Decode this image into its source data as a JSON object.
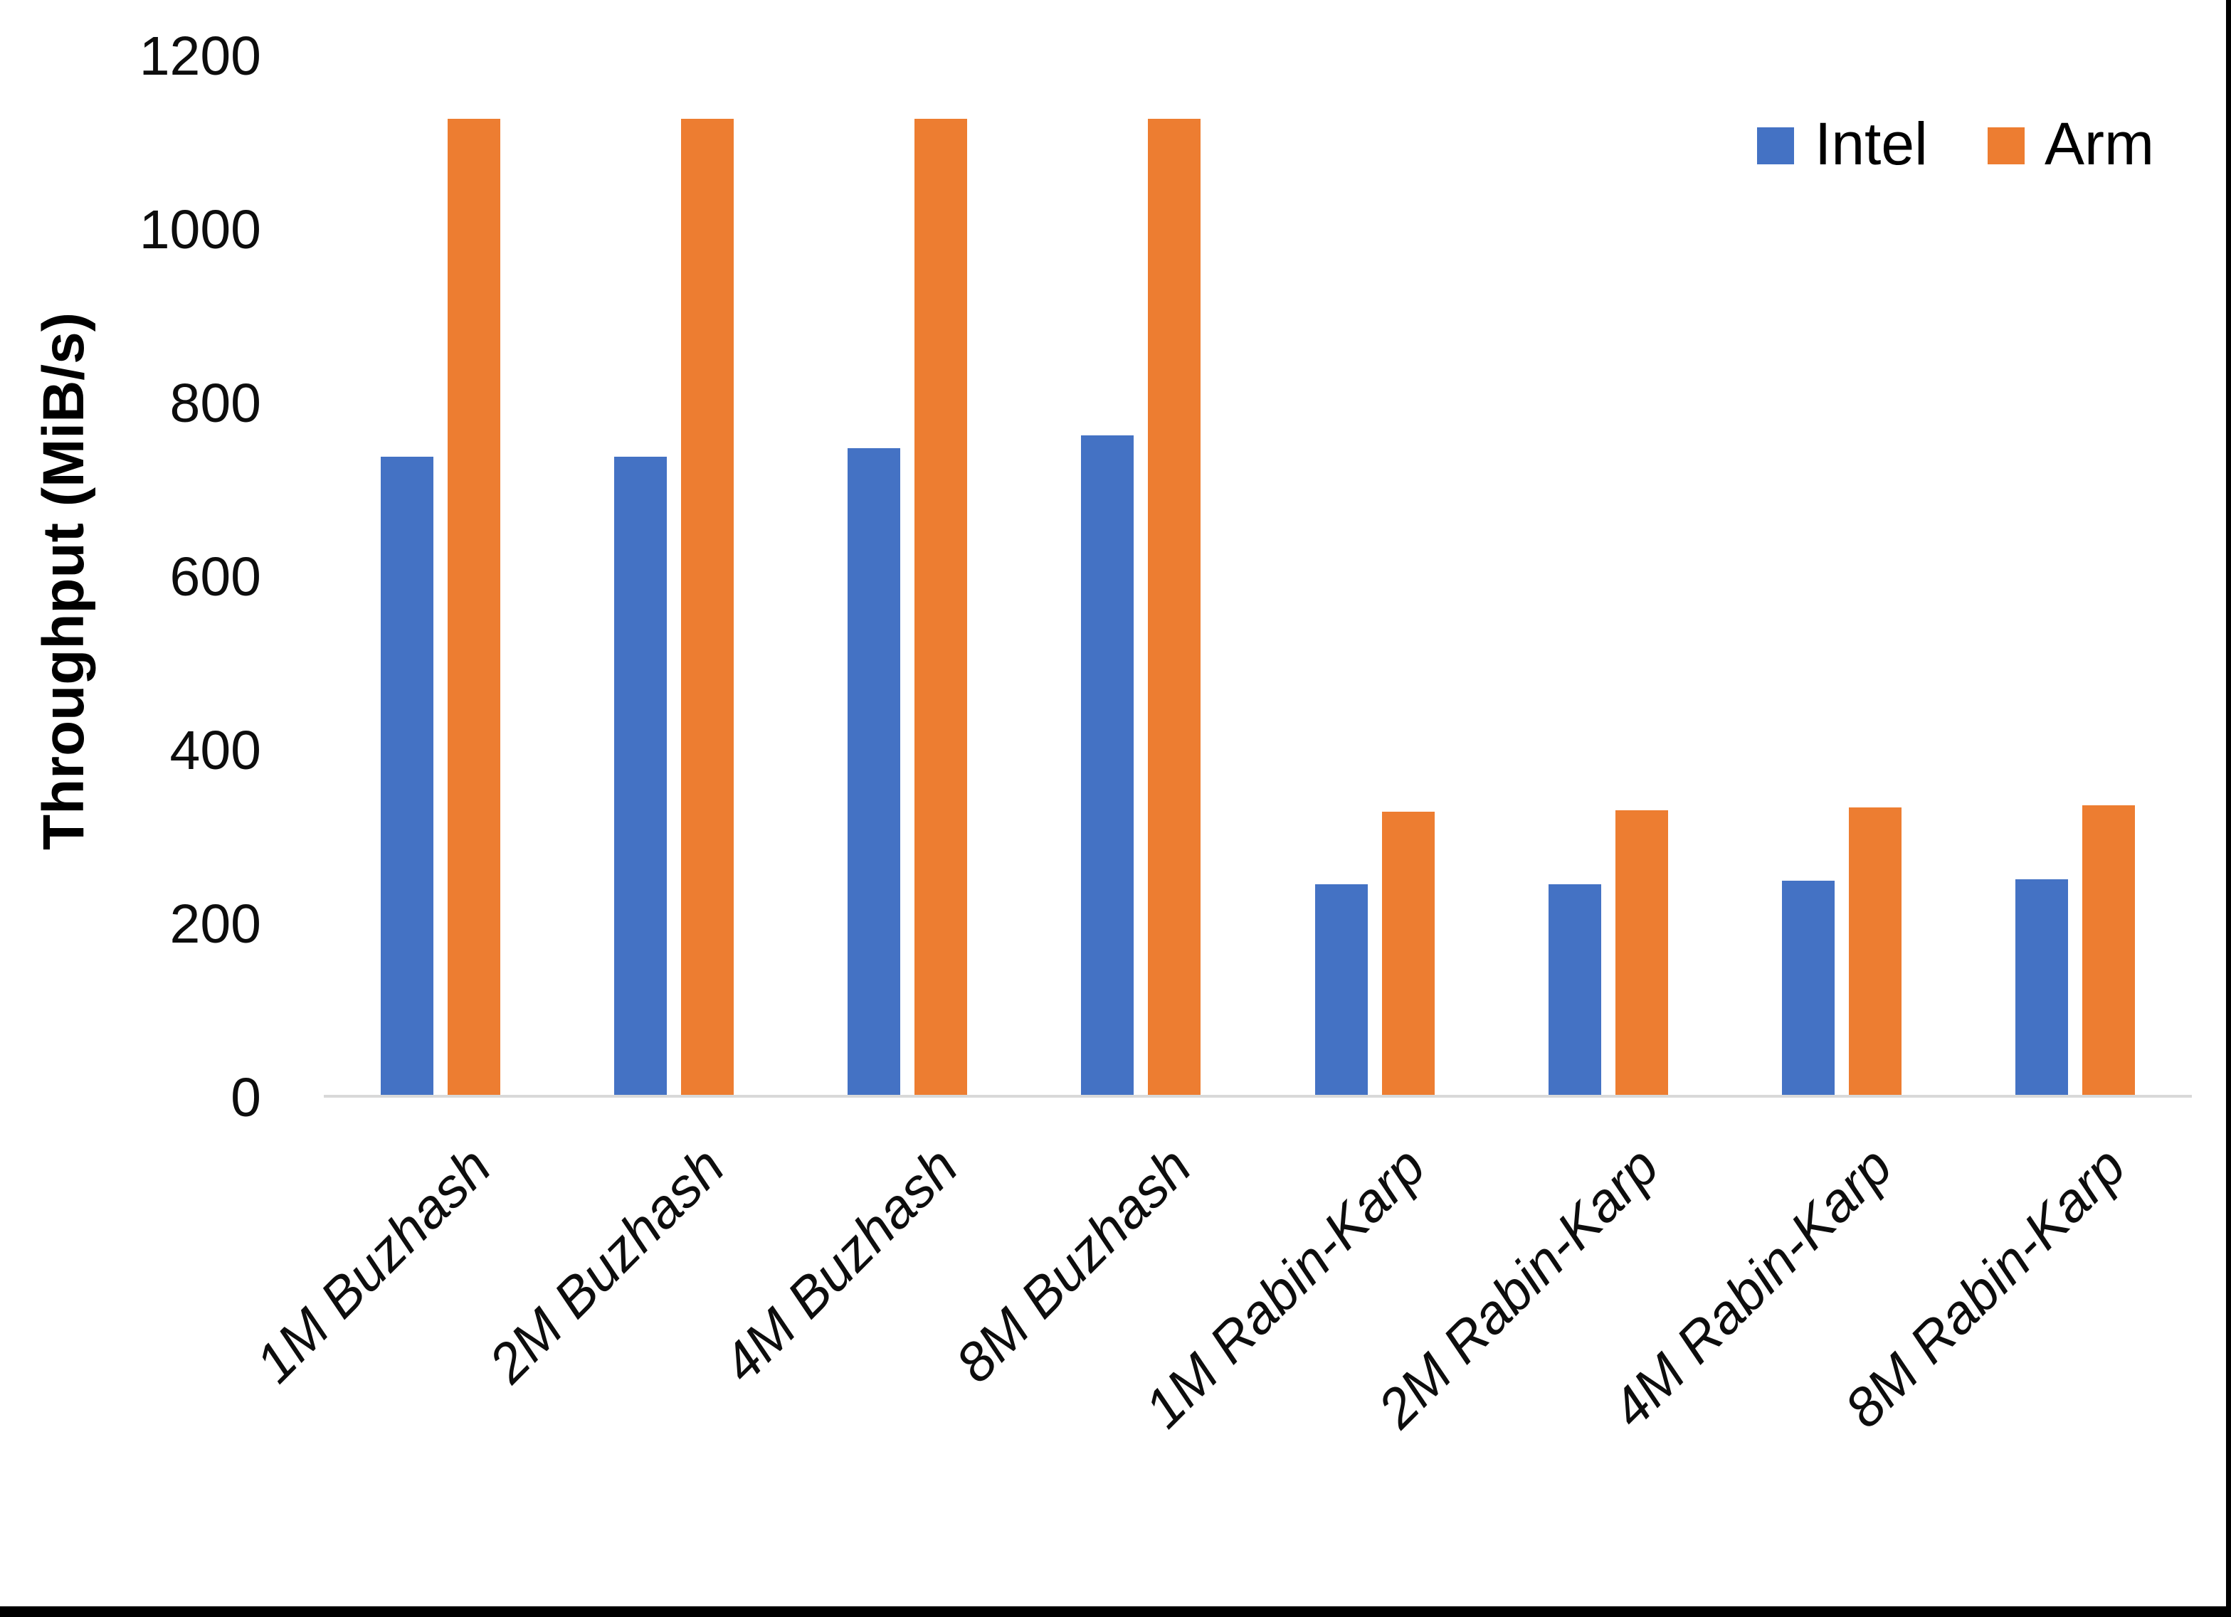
{
  "figure": {
    "background": "#FFFFFF",
    "frame_color": "#000000"
  },
  "chart_data": {
    "type": "bar",
    "title": "",
    "xlabel": "",
    "ylabel": "Throughput (MiB/s)",
    "ylim": [
      0,
      1200
    ],
    "yticks": [
      0,
      200,
      400,
      600,
      800,
      1000,
      1200
    ],
    "grid": false,
    "legend_position": "top-right",
    "categories": [
      "1M Buzhash",
      "2M Buzhash",
      "4M Buzhash",
      "8M Buzhash",
      "1M Rabin-Karp",
      "2M Rabin-Karp",
      "4M Rabin-Karp",
      "8M Rabin-Karp"
    ],
    "series": [
      {
        "name": "Intel",
        "color": "#4472C4",
        "values": [
          735,
          735,
          745,
          760,
          243,
          243,
          247,
          248
        ]
      },
      {
        "name": "Arm",
        "color": "#ED7D31",
        "values": [
          1125,
          1125,
          1125,
          1125,
          326,
          328,
          331,
          334
        ]
      }
    ],
    "axis_line_color": "#D9D9D9",
    "text_color": "#000000"
  }
}
